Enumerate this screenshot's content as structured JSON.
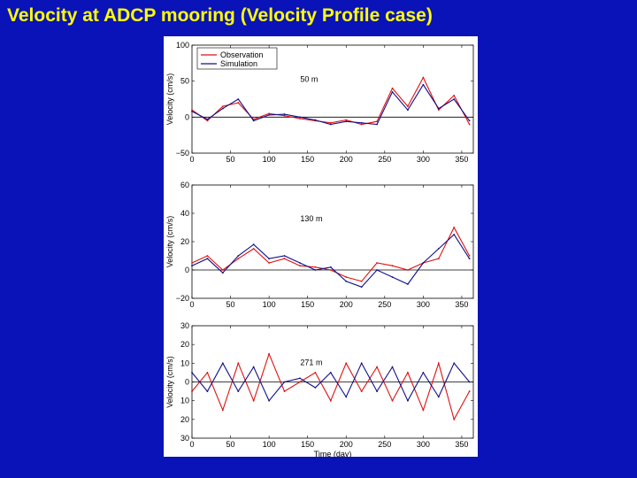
{
  "slide": {
    "title": "Velocity at ADCP mooring (Velocity Profile case)"
  },
  "colors": {
    "background": "#0a13b8",
    "title": "#ffff00",
    "observation": "#e01010",
    "simulation": "#10108a"
  },
  "chart_data": [
    {
      "type": "line",
      "title": "",
      "annotation": "50 m",
      "xlabel": "",
      "ylabel": "Velocity (cm/s)",
      "xlim": [
        0,
        365
      ],
      "ylim": [
        -50,
        100
      ],
      "xticks": [
        "0",
        "50",
        "100",
        "150",
        "200",
        "250",
        "300",
        "350"
      ],
      "yticks": [
        "100",
        "50",
        "0",
        "−50"
      ],
      "legend": {
        "placement": "top-left",
        "entries": [
          "Observation",
          "Simulation"
        ]
      },
      "series": [
        {
          "name": "Observation",
          "x": [
            0,
            20,
            40,
            60,
            80,
            100,
            120,
            140,
            160,
            180,
            200,
            220,
            240,
            260,
            280,
            300,
            320,
            340,
            360
          ],
          "y": [
            10,
            -5,
            15,
            20,
            -3,
            5,
            2,
            -2,
            -5,
            -8,
            -4,
            -10,
            -6,
            40,
            15,
            55,
            10,
            30,
            -10
          ]
        },
        {
          "name": "Simulation",
          "x": [
            0,
            20,
            40,
            60,
            80,
            100,
            120,
            140,
            160,
            180,
            200,
            220,
            240,
            260,
            280,
            300,
            320,
            340,
            360
          ],
          "y": [
            8,
            -3,
            12,
            25,
            -5,
            3,
            4,
            0,
            -4,
            -10,
            -6,
            -8,
            -10,
            35,
            10,
            45,
            12,
            25,
            -5
          ]
        }
      ]
    },
    {
      "type": "line",
      "title": "",
      "annotation": "130 m",
      "xlabel": "",
      "ylabel": "Velocity (cm/s)",
      "xlim": [
        0,
        365
      ],
      "ylim": [
        -20,
        60
      ],
      "xticks": [
        "0",
        "50",
        "100",
        "150",
        "200",
        "250",
        "300",
        "350"
      ],
      "yticks": [
        "60",
        "40",
        "20",
        "0",
        "−20"
      ],
      "series": [
        {
          "name": "Observation",
          "x": [
            0,
            20,
            40,
            60,
            80,
            100,
            120,
            140,
            160,
            180,
            200,
            220,
            240,
            260,
            280,
            300,
            320,
            340,
            360
          ],
          "y": [
            5,
            10,
            0,
            8,
            15,
            5,
            8,
            3,
            2,
            0,
            -5,
            -8,
            5,
            3,
            0,
            5,
            8,
            30,
            10
          ]
        },
        {
          "name": "Simulation",
          "x": [
            0,
            20,
            40,
            60,
            80,
            100,
            120,
            140,
            160,
            180,
            200,
            220,
            240,
            260,
            280,
            300,
            320,
            340,
            360
          ],
          "y": [
            3,
            8,
            -2,
            10,
            18,
            8,
            10,
            5,
            0,
            2,
            -8,
            -12,
            0,
            -5,
            -10,
            5,
            15,
            25,
            8
          ]
        }
      ]
    },
    {
      "type": "line",
      "title": "",
      "annotation": "271 m",
      "xlabel": "Time (day)",
      "ylabel": "Velocity (cm/s)",
      "xlim": [
        0,
        365
      ],
      "ylim": [
        -30,
        30
      ],
      "xticks": [
        "0",
        "50",
        "100",
        "150",
        "200",
        "250",
        "300",
        "350"
      ],
      "yticks": [
        "30",
        "20",
        "10",
        "0",
        "10",
        "20",
        "30"
      ],
      "series": [
        {
          "name": "Observation",
          "x": [
            0,
            20,
            40,
            60,
            80,
            100,
            120,
            140,
            160,
            180,
            200,
            220,
            240,
            260,
            280,
            300,
            320,
            340,
            360
          ],
          "y": [
            -5,
            5,
            -15,
            10,
            -10,
            15,
            -5,
            0,
            5,
            -10,
            10,
            -5,
            8,
            -10,
            5,
            -15,
            10,
            -20,
            -5
          ]
        },
        {
          "name": "Simulation",
          "x": [
            0,
            20,
            40,
            60,
            80,
            100,
            120,
            140,
            160,
            180,
            200,
            220,
            240,
            260,
            280,
            300,
            320,
            340,
            360
          ],
          "y": [
            5,
            -5,
            10,
            -5,
            8,
            -10,
            0,
            2,
            -3,
            5,
            -8,
            10,
            -5,
            8,
            -10,
            5,
            -8,
            10,
            0
          ]
        }
      ]
    }
  ]
}
